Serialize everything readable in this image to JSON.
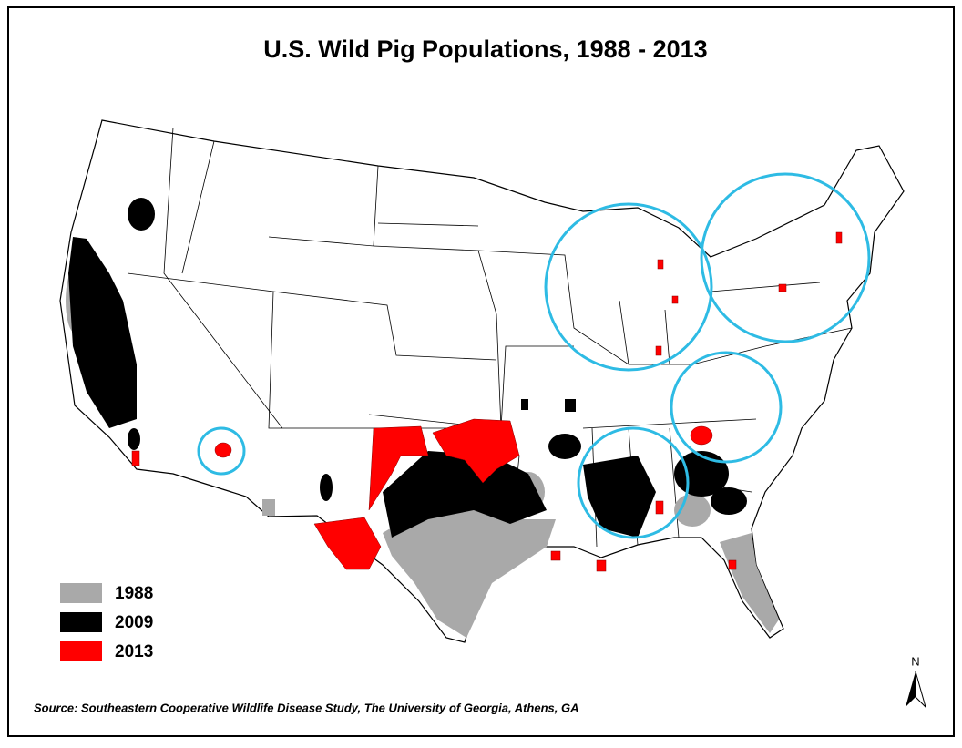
{
  "title": "U.S. Wild Pig Populations, 1988 - 2013",
  "legend": [
    {
      "label": "1988",
      "color": "#a9a9a9"
    },
    {
      "label": "2009",
      "color": "#000000"
    },
    {
      "label": "2013",
      "color": "#ff0000"
    }
  ],
  "source": "Source: Southeastern Cooperative Wildlife Disease Study, The University of Georgia, Athens, GA",
  "north_label": "N"
}
